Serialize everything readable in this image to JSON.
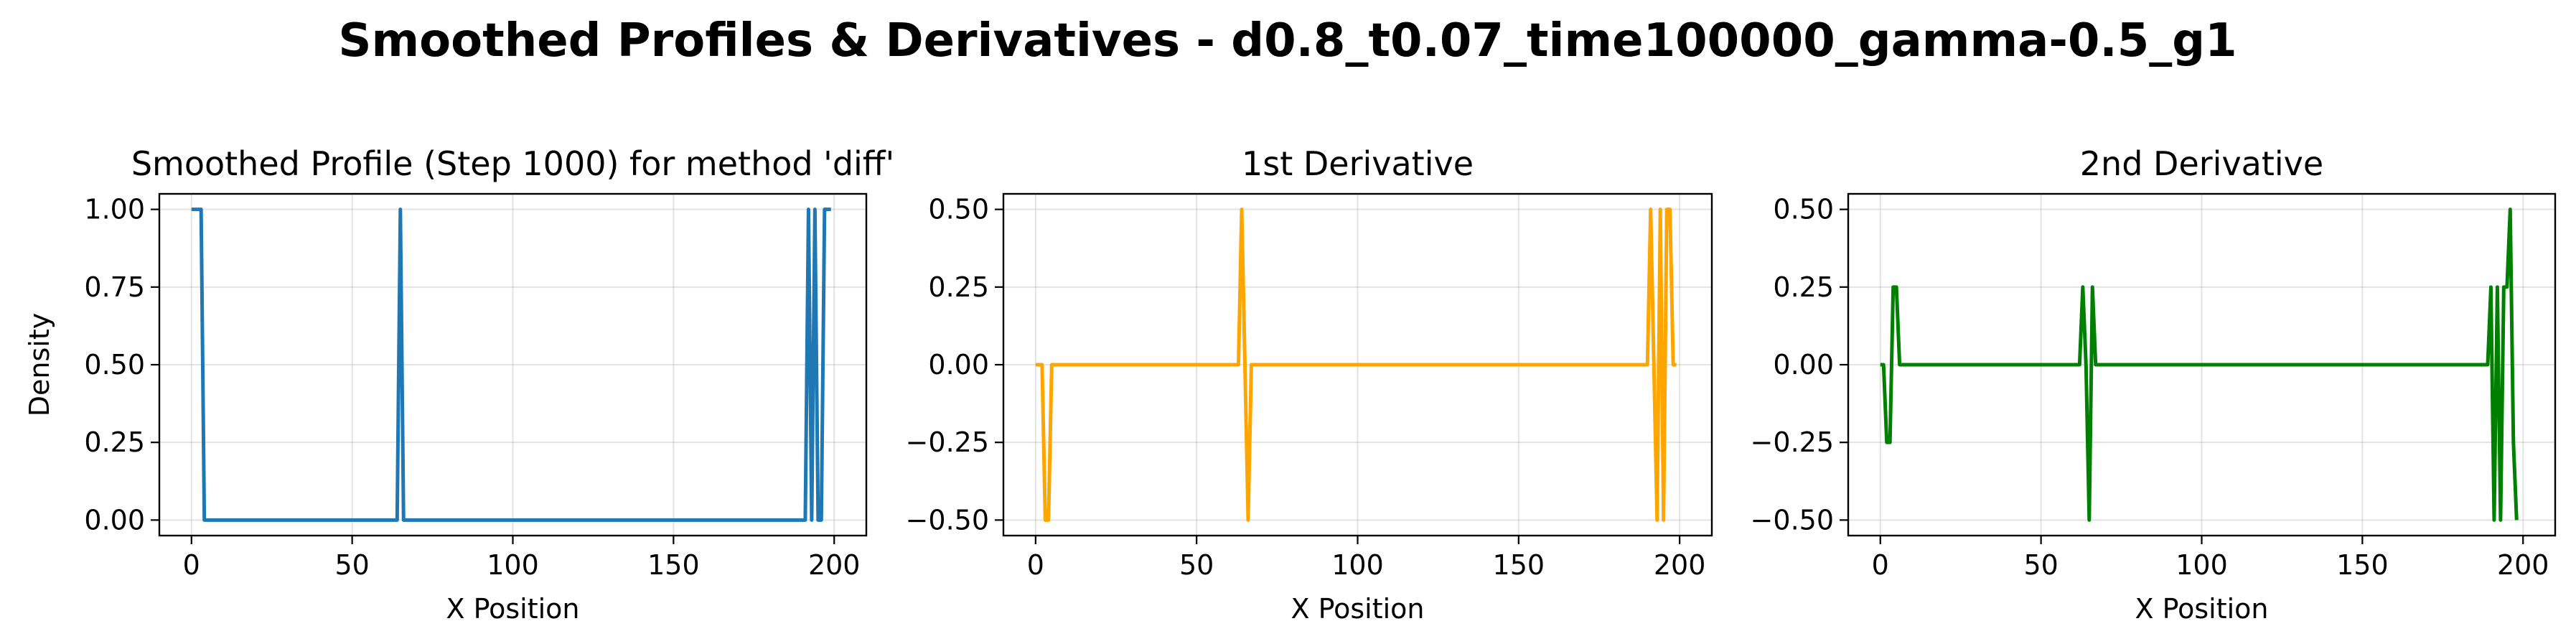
{
  "figure_title": "Smoothed Profiles & Derivatives - d0.8_t0.07_time100000_gamma-0.5_g1",
  "chart_data": [
    {
      "type": "line",
      "title": "Smoothed Profile (Step 1000) for method 'diff'",
      "xlabel": "X Position",
      "ylabel": "Density",
      "xlim": [
        -10,
        210
      ],
      "ylim": [
        -0.05,
        1.05
      ],
      "xticks": [
        0,
        50,
        100,
        150,
        200
      ],
      "yticks": [
        0.0,
        0.25,
        0.5,
        0.75,
        1.0
      ],
      "xtick_labels": [
        "0",
        "50",
        "100",
        "150",
        "200"
      ],
      "ytick_labels": [
        "0.00",
        "0.25",
        "0.50",
        "0.75",
        "1.00"
      ],
      "grid": true,
      "color": "#1f77b4",
      "series": [
        {
          "x": [
            0,
            1,
            2,
            3,
            4,
            5,
            64,
            65,
            66,
            191,
            192,
            193,
            194,
            195,
            196,
            197,
            198,
            199
          ],
          "y": [
            1,
            1,
            1,
            1,
            0,
            0,
            0,
            1,
            0,
            0,
            1,
            0,
            1,
            0,
            0,
            1,
            1,
            1
          ]
        }
      ]
    },
    {
      "type": "line",
      "title": "1st Derivative",
      "xlabel": "X Position",
      "ylabel": "",
      "xlim": [
        -10,
        210
      ],
      "ylim": [
        -0.55,
        0.55
      ],
      "xticks": [
        0,
        50,
        100,
        150,
        200
      ],
      "yticks": [
        -0.5,
        -0.25,
        0.0,
        0.25,
        0.5
      ],
      "xtick_labels": [
        "0",
        "50",
        "100",
        "150",
        "200"
      ],
      "ytick_labels": [
        "−0.50",
        "−0.25",
        "0.00",
        "0.25",
        "0.50"
      ],
      "grid": true,
      "color": "#ffa500",
      "series": [
        {
          "x": [
            0,
            1,
            2,
            3,
            4,
            5,
            63,
            64,
            65,
            66,
            67,
            190,
            191,
            192,
            193,
            194,
            195,
            196,
            197,
            198,
            199
          ],
          "y": [
            0,
            0,
            0,
            -0.5,
            -0.5,
            0,
            0,
            0.5,
            0,
            -0.5,
            0,
            0,
            0.5,
            0,
            -0.5,
            0.5,
            -0.5,
            0.5,
            0.5,
            0,
            0
          ]
        }
      ]
    },
    {
      "type": "line",
      "title": "2nd Derivative",
      "xlabel": "X Position",
      "ylabel": "",
      "xlim": [
        -10,
        210
      ],
      "ylim": [
        -0.55,
        0.55
      ],
      "xticks": [
        0,
        50,
        100,
        150,
        200
      ],
      "yticks": [
        -0.5,
        -0.25,
        0.0,
        0.25,
        0.5
      ],
      "xtick_labels": [
        "0",
        "50",
        "100",
        "150",
        "200"
      ],
      "ytick_labels": [
        "−0.50",
        "−0.25",
        "0.00",
        "0.25",
        "0.50"
      ],
      "grid": true,
      "color": "#008000",
      "series": [
        {
          "x": [
            0,
            1,
            2,
            3,
            4,
            5,
            6,
            62,
            63,
            64,
            65,
            66,
            67,
            68,
            189,
            190,
            191,
            192,
            193,
            194,
            195,
            196,
            197,
            198
          ],
          "y": [
            0,
            0,
            -0.25,
            -0.25,
            0.25,
            0.25,
            0,
            0,
            0.25,
            0,
            -0.5,
            0.25,
            0,
            0,
            0,
            0.25,
            -0.5,
            0.25,
            -0.5,
            0.25,
            0.25,
            0.5,
            -0.25,
            -0.5
          ]
        }
      ]
    }
  ]
}
